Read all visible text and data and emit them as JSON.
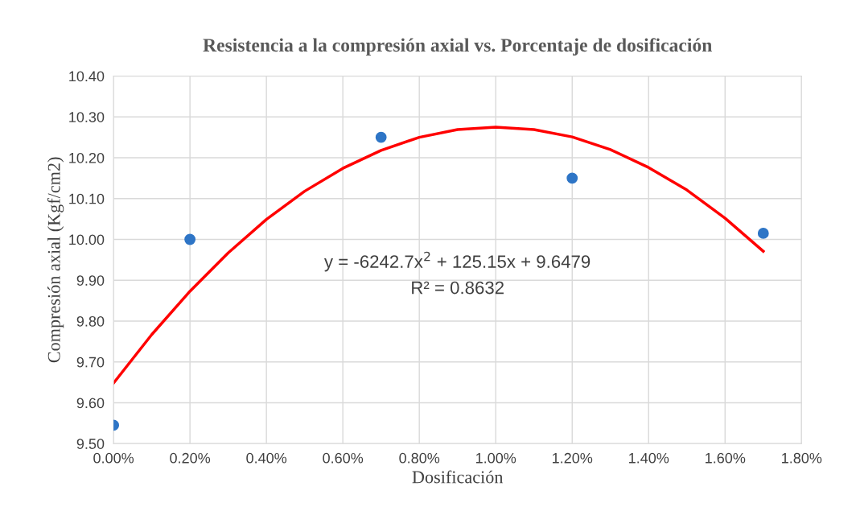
{
  "chart_data": {
    "type": "scatter",
    "title": "Resistencia a la compresión axial vs. Porcentaje de dosificación",
    "xlabel": "Dosificación",
    "ylabel": "Compresión axial (Kgf/cm2)",
    "x": [
      0.0,
      0.002,
      0.007,
      0.012,
      0.017
    ],
    "series": [
      {
        "color": "#2e75c6",
        "marker": "circle",
        "values": [
          9.545,
          10.0,
          10.25,
          10.15,
          10.015
        ]
      },
      {
        "type": "line",
        "color": "#ff0000",
        "marker": "none",
        "line_style": "solid",
        "x": [
          0.0,
          0.001,
          0.002,
          0.003,
          0.004,
          0.005,
          0.006,
          0.007,
          0.008,
          0.009,
          0.01,
          0.011,
          0.012,
          0.013,
          0.014,
          0.015,
          0.016,
          0.017
        ],
        "values": [
          9.648,
          9.767,
          9.873,
          9.967,
          10.049,
          10.118,
          10.174,
          10.218,
          10.25,
          10.269,
          10.275,
          10.269,
          10.251,
          10.22,
          10.176,
          10.121,
          10.052,
          9.971
        ]
      }
    ],
    "annotations": [
      "y = -6242.7x$^{2}$ + 125.15x + 9.6479",
      "R² = 0.8632"
    ],
    "xlim": [
      0.0,
      0.018
    ],
    "xticks": [
      {
        "value": 0.0,
        "label": "0.00%"
      },
      {
        "value": 0.002,
        "label": "0.20%"
      },
      {
        "value": 0.004,
        "label": "0.40%"
      },
      {
        "value": 0.006,
        "label": "0.60%"
      },
      {
        "value": 0.008,
        "label": "0.80%"
      },
      {
        "value": 0.01,
        "label": "1.00%"
      },
      {
        "value": 0.012,
        "label": "1.20%"
      },
      {
        "value": 0.014,
        "label": "1.40%"
      },
      {
        "value": 0.016,
        "label": "1.60%"
      },
      {
        "value": 0.018,
        "label": "1.80%"
      }
    ],
    "ylim": [
      9.5,
      10.4
    ],
    "yticks": [
      {
        "value": 9.5,
        "label": "9.50"
      },
      {
        "value": 9.6,
        "label": "9.60"
      },
      {
        "value": 9.7,
        "label": "9.70"
      },
      {
        "value": 9.8,
        "label": "9.80"
      },
      {
        "value": 9.9,
        "label": "9.90"
      },
      {
        "value": 10.0,
        "label": "10.00"
      },
      {
        "value": 10.1,
        "label": "10.10"
      },
      {
        "value": 10.2,
        "label": "10.20"
      },
      {
        "value": 10.3,
        "label": "10.30"
      },
      {
        "value": 10.4,
        "label": "10.40"
      }
    ],
    "grid": true
  }
}
